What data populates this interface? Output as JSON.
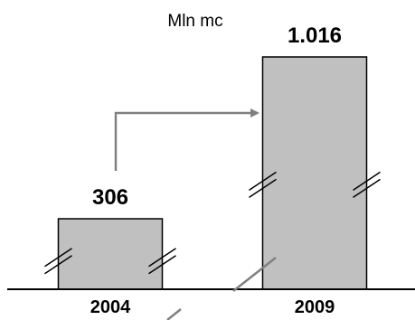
{
  "chart_data": {
    "type": "bar",
    "unit": "Mln mc",
    "categories": [
      "2004",
      "2009"
    ],
    "values": [
      306,
      1016
    ],
    "value_labels": [
      "306",
      "1.016"
    ],
    "axis_break": true,
    "arrow_between_bars": true,
    "colors": {
      "bar_fill": "#c0c0c0",
      "bar_stroke": "#000000",
      "arrow": "#808080",
      "axis": "#000000"
    }
  }
}
